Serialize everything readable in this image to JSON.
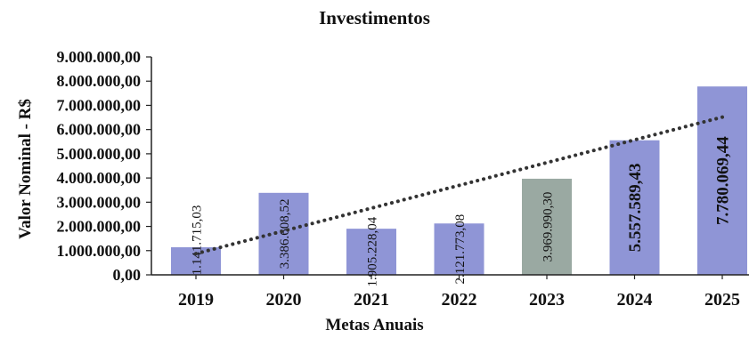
{
  "chart_data": {
    "type": "bar",
    "title": "Investimentos",
    "xlabel": "Metas Anuais",
    "ylabel": "Valor Nominal - R$",
    "categories": [
      "2019",
      "2020",
      "2021",
      "2022",
      "2023",
      "2024",
      "2025"
    ],
    "values": [
      1141715.03,
      3386608.52,
      1905228.04,
      2121773.08,
      3969990.3,
      5557589.43,
      7780069.44
    ],
    "value_labels": [
      "1.141.715,03",
      "3.386.608,52",
      "1.905.228,04",
      "2.121.773,08",
      "3.969.990,30",
      "5.557.589,43",
      "7.780.069,44"
    ],
    "yticks": [
      0,
      1000000,
      2000000,
      3000000,
      4000000,
      5000000,
      6000000,
      7000000,
      8000000,
      9000000
    ],
    "ytick_labels": [
      "0,00",
      "1.000.000,00",
      "2.000.000,00",
      "3.000.000,00",
      "4.000.000,00",
      "5.000.000,00",
      "6.000.000,00",
      "7.000.000,00",
      "8.000.000,00",
      "9.000.000,00"
    ],
    "ylim": [
      0,
      9000000
    ],
    "trendline": {
      "style": "dotted",
      "linear": true
    },
    "colors": {
      "bar": "#8f95d6",
      "bar_highlight": "#9aa9a2",
      "trend": "#333333",
      "axis": "#222222"
    },
    "highlight_index": 4,
    "grid": false,
    "legend": "none"
  }
}
